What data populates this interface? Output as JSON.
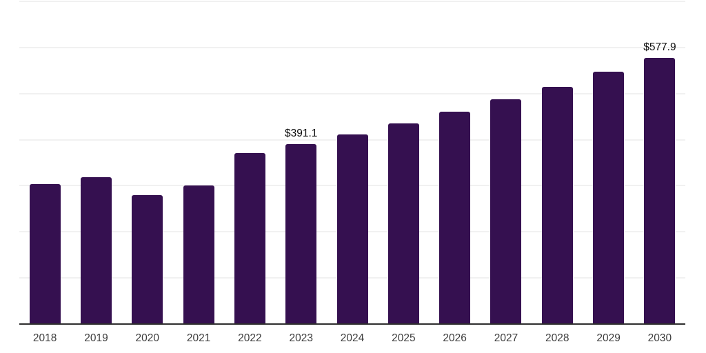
{
  "chart_data": {
    "type": "bar",
    "title": "",
    "xlabel": "",
    "ylabel": "",
    "categories": [
      "2018",
      "2019",
      "2020",
      "2021",
      "2022",
      "2023",
      "2024",
      "2025",
      "2026",
      "2027",
      "2028",
      "2029",
      "2030"
    ],
    "values": [
      304,
      318,
      280,
      301,
      371,
      391.1,
      411,
      435,
      460,
      487,
      515,
      547,
      577.9
    ],
    "data_labels": [
      {
        "category_index": 5,
        "text": "$391.1"
      },
      {
        "category_index": 12,
        "text": "$577.9"
      }
    ],
    "ylim": [
      0,
      700
    ],
    "gridline_interval": 100,
    "grid": true,
    "legend": false,
    "y_axis_tick_labels_visible": false
  },
  "colors": {
    "bar": "#351050",
    "gridline": "#f1f1f1",
    "axis_line": "#2e2e2e",
    "tick_label": "#3d3d3d",
    "value_label": "#0d0d0d",
    "background": "#ffffff"
  }
}
